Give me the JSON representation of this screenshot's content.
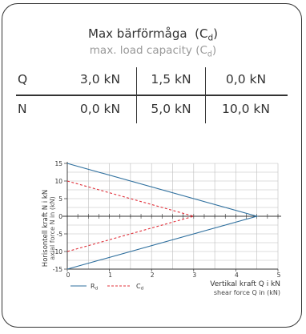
{
  "header": {
    "title_sv": "Max bärförmåga",
    "title_sv_sym": "C",
    "title_sv_sub": "d",
    "title_en": "max. load capacity",
    "title_en_sym": "C",
    "title_en_sub": "d"
  },
  "table": {
    "rows": [
      {
        "label": "Q",
        "values": [
          "3,0 kN",
          "1,5 kN",
          "0,0 kN"
        ]
      },
      {
        "label": "N",
        "values": [
          "0,0 kN",
          "5,0 kN",
          "10,0 kN"
        ]
      }
    ]
  },
  "chart_data": {
    "type": "line",
    "ylabel_sv": "Horisontell kraft N i kN",
    "ylabel_en": "axial force N in (kN)",
    "xlabel_sv": "Vertikal kraft Q i kN",
    "xlabel_en": "shear force Q in (kN)",
    "xlim": [
      0,
      5
    ],
    "ylim": [
      -15,
      15
    ],
    "xticks": [
      "0",
      "1",
      "2",
      "3",
      "4",
      "5"
    ],
    "yticks": [
      "15",
      "10",
      "5",
      "0",
      "-5",
      "-10",
      "-15"
    ],
    "xtick_values": [
      0,
      1,
      2,
      3,
      4,
      5
    ],
    "ytick_values": [
      15,
      10,
      5,
      0,
      -5,
      -10,
      -15
    ],
    "grid": true,
    "legend_position": "bottom",
    "series": [
      {
        "name": "R",
        "name_sub": "d",
        "color": "#2e6f9e",
        "style": "solid",
        "x": [
          0,
          4.5,
          0
        ],
        "y": [
          15,
          0,
          -15
        ]
      },
      {
        "name": "C",
        "name_sub": "d",
        "color": "#e0303a",
        "style": "dashed",
        "x": [
          0,
          3,
          0
        ],
        "y": [
          10,
          0,
          -10
        ]
      }
    ]
  }
}
